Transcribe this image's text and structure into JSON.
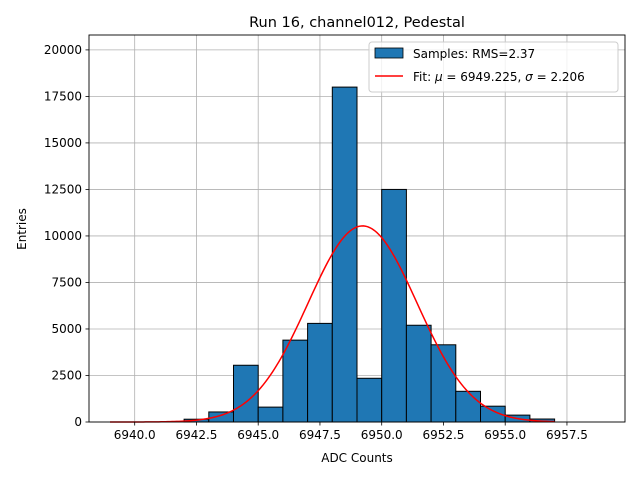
{
  "chart_data": {
    "type": "bar",
    "title": "Run 16, channel012, Pedestal",
    "xlabel": "ADC Counts",
    "ylabel": "Entries",
    "xlim": [
      6938.15,
      6959.85
    ],
    "ylim": [
      0,
      20800
    ],
    "grid": true,
    "legend_position": "top-right",
    "x_ticks": [
      6940.0,
      6942.5,
      6945.0,
      6947.5,
      6950.0,
      6952.5,
      6955.0,
      6957.5
    ],
    "x_tick_labels": [
      "6940.0",
      "6942.5",
      "6945.0",
      "6947.5",
      "6950.0",
      "6952.5",
      "6955.0",
      "6957.5"
    ],
    "y_ticks": [
      0,
      2500,
      5000,
      7500,
      10000,
      12500,
      15000,
      17500,
      20000
    ],
    "y_tick_labels": [
      "0",
      "2500",
      "5000",
      "7500",
      "10000",
      "12500",
      "15000",
      "17500",
      "20000"
    ],
    "histogram": {
      "name": "Samples: RMS=2.37",
      "color": "#1f77b4",
      "bin_edges": [
        6942,
        6943,
        6944,
        6945,
        6946,
        6947,
        6948,
        6949,
        6950,
        6951,
        6952,
        6953,
        6954,
        6955,
        6956,
        6957
      ],
      "values": [
        150,
        540,
        3050,
        800,
        4400,
        5300,
        18000,
        2350,
        12500,
        5200,
        4150,
        1650,
        850,
        370,
        160
      ]
    },
    "fit": {
      "name": "Fit: μ = 6949.225, σ = 2.206",
      "label_prefix": "Fit: ",
      "mu_label": " = 6949.225, ",
      "sigma_label": " = 2.206",
      "mu": 6949.225,
      "sigma": 2.206,
      "amplitude": 10540,
      "x_range": [
        6939,
        6957
      ],
      "color": "#ff0000"
    }
  }
}
